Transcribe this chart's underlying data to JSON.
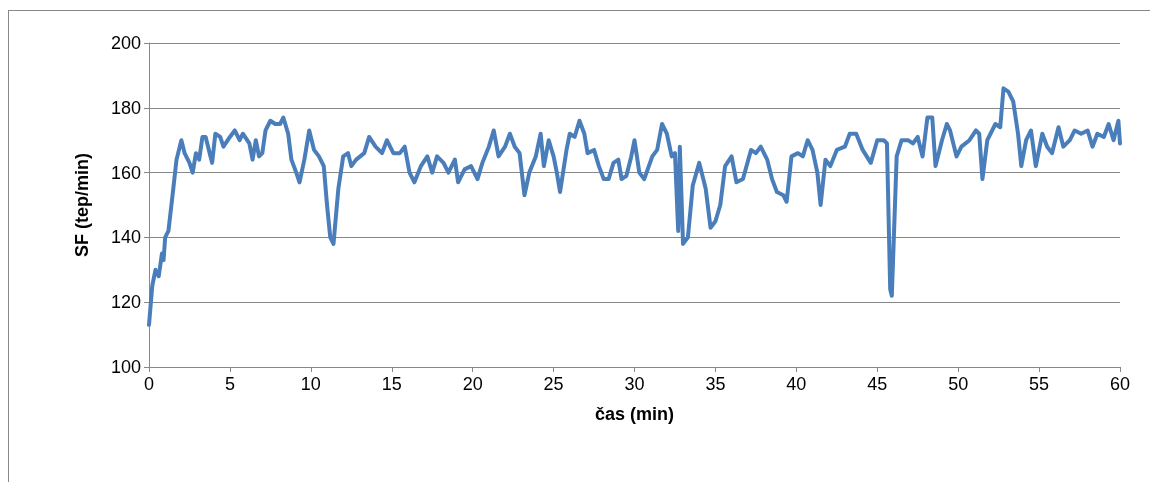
{
  "chart_data": {
    "type": "line",
    "xlabel": "čas (min)",
    "ylabel": "SF (tep/min)",
    "xlim": [
      0,
      60
    ],
    "xticks": [
      0,
      5,
      10,
      15,
      20,
      25,
      30,
      35,
      40,
      45,
      50,
      55,
      60
    ],
    "ylim": [
      100,
      200
    ],
    "yticks": [
      100,
      120,
      140,
      160,
      180,
      200
    ],
    "grid": "y",
    "marker": "none",
    "line_style": "solid",
    "series": [
      {
        "color": "#4a7ebb",
        "x": [
          0,
          0.2,
          0.4,
          0.6,
          0.8,
          0.9,
          1.0,
          1.2,
          1.5,
          1.7,
          1.9,
          2.0,
          2.2,
          2.5,
          2.7,
          2.9,
          3.1,
          3.3,
          3.5,
          3.8,
          3.9,
          4.1,
          4.4,
          4.6,
          5.0,
          5.3,
          5.6,
          5.8,
          6.2,
          6.4,
          6.6,
          6.8,
          7.0,
          7.2,
          7.5,
          7.8,
          8.1,
          8.3,
          8.6,
          8.8,
          9.1,
          9.3,
          9.6,
          9.9,
          10.2,
          10.5,
          10.8,
          11.0,
          11.2,
          11.4,
          11.7,
          12.0,
          12.3,
          12.5,
          12.8,
          13.3,
          13.6,
          14.0,
          14.4,
          14.7,
          15.1,
          15.5,
          15.8,
          16.1,
          16.4,
          16.8,
          17.2,
          17.5,
          17.8,
          18.2,
          18.5,
          18.9,
          19.1,
          19.5,
          19.9,
          20.3,
          20.6,
          21.0,
          21.3,
          21.6,
          22.0,
          22.3,
          22.6,
          22.9,
          23.2,
          23.5,
          23.9,
          24.2,
          24.4,
          24.7,
          25.0,
          25.2,
          25.4,
          25.8,
          26.0,
          26.3,
          26.6,
          26.9,
          27.1,
          27.5,
          27.8,
          28.1,
          28.4,
          28.7,
          29.0,
          29.2,
          29.5,
          29.8,
          30.0,
          30.3,
          30.6,
          31.1,
          31.4,
          31.7,
          32.0,
          32.3,
          32.5,
          32.7,
          32.8,
          33.0,
          33.3,
          33.6,
          34.0,
          34.4,
          34.7,
          35.0,
          35.3,
          35.6,
          36.0,
          36.3,
          36.7,
          37.2,
          37.5,
          37.8,
          38.2,
          38.5,
          38.8,
          39.2,
          39.4,
          39.7,
          40.1,
          40.4,
          40.7,
          41.0,
          41.3,
          41.5,
          41.8,
          42.1,
          42.5,
          43.0,
          43.3,
          43.7,
          44.1,
          44.6,
          45.0,
          45.4,
          45.6,
          45.8,
          45.9,
          46.2,
          46.5,
          46.9,
          47.2,
          47.5,
          47.8,
          48.1,
          48.4,
          48.6,
          49.0,
          49.3,
          49.5,
          49.9,
          50.2,
          50.7,
          51.1,
          51.3,
          51.5,
          51.8,
          52.3,
          52.6,
          52.8,
          53.1,
          53.4,
          53.7,
          53.9,
          54.2,
          54.5,
          54.8,
          55.2,
          55.5,
          55.8,
          56.2,
          56.5,
          56.9,
          57.2,
          57.6,
          58.0,
          58.3,
          58.6,
          59.0,
          59.3,
          59.6,
          59.9,
          60.0
        ],
        "values": [
          113,
          125,
          130,
          128,
          135,
          133,
          140,
          142,
          155,
          164,
          168,
          170,
          166,
          163,
          160,
          166,
          164,
          171,
          171,
          165,
          163,
          172,
          171,
          168,
          171,
          173,
          170,
          172,
          169,
          164,
          170,
          165,
          166,
          173,
          176,
          175,
          175,
          177,
          172,
          164,
          160,
          157,
          164,
          173,
          167,
          165,
          162,
          150,
          140,
          138,
          155,
          165,
          166,
          162,
          164,
          166,
          171,
          168,
          166,
          170,
          166,
          166,
          168,
          160,
          157,
          162,
          165,
          160,
          165,
          163,
          160,
          164,
          157,
          161,
          162,
          158,
          163,
          168,
          173,
          165,
          168,
          172,
          168,
          166,
          153,
          160,
          165,
          172,
          162,
          170,
          165,
          160,
          154,
          167,
          172,
          171,
          176,
          172,
          166,
          167,
          162,
          158,
          158,
          163,
          164,
          158,
          159,
          165,
          170,
          160,
          158,
          165,
          167,
          175,
          172,
          165,
          166,
          142,
          168,
          138,
          140,
          156,
          163,
          155,
          143,
          145,
          150,
          162,
          165,
          157,
          158,
          167,
          166,
          168,
          164,
          158,
          154,
          153,
          151,
          165,
          166,
          165,
          170,
          167,
          160,
          150,
          164,
          162,
          167,
          168,
          172,
          172,
          167,
          163,
          170,
          170,
          169,
          124,
          122,
          165,
          170,
          170,
          169,
          171,
          165,
          177,
          177,
          162,
          170,
          175,
          173,
          165,
          168,
          170,
          173,
          172,
          158,
          170,
          175,
          174,
          186,
          185,
          182,
          172,
          162,
          170,
          173,
          162,
          172,
          168,
          166,
          174,
          168,
          170,
          173,
          172,
          173,
          168,
          172,
          171,
          175,
          170,
          176,
          169
        ]
      }
    ]
  }
}
